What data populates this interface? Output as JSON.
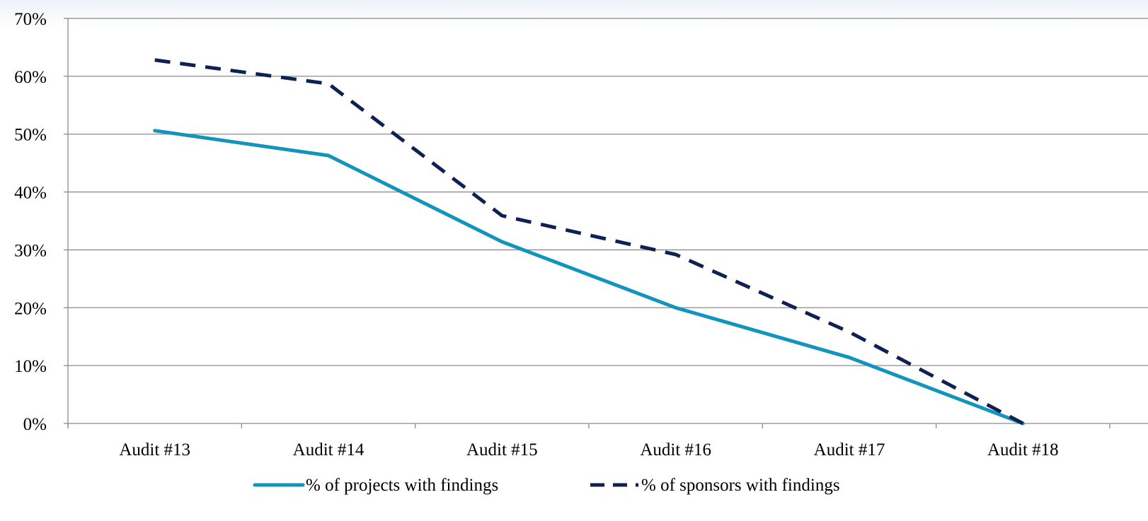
{
  "chart_data": {
    "type": "line",
    "categories": [
      "Audit #13",
      "Audit #14",
      "Audit #15",
      "Audit #16",
      "Audit #17",
      "Audit #18"
    ],
    "series": [
      {
        "name": "% of projects with findings",
        "values": [
          50.6,
          46.3,
          31.4,
          20.0,
          11.4,
          0
        ],
        "color": "#1394bd",
        "dashed": false
      },
      {
        "name": "% of sponsors with findings",
        "values": [
          62.8,
          58.7,
          35.9,
          29.2,
          15.8,
          0
        ],
        "color": "#0f2153",
        "dashed": true
      }
    ],
    "title": "",
    "xlabel": "",
    "ylabel": "",
    "ylim": [
      0,
      70
    ],
    "yticks": [
      0,
      10,
      20,
      30,
      40,
      50,
      60,
      70
    ],
    "ytick_labels": [
      "0%",
      "10%",
      "20%",
      "30%",
      "40%",
      "50%",
      "60%",
      "70%"
    ],
    "grid": true,
    "legend_position": "bottom-center",
    "colors": {
      "gridline": "#8c8c8c",
      "axis": "#8c8c8c"
    }
  }
}
